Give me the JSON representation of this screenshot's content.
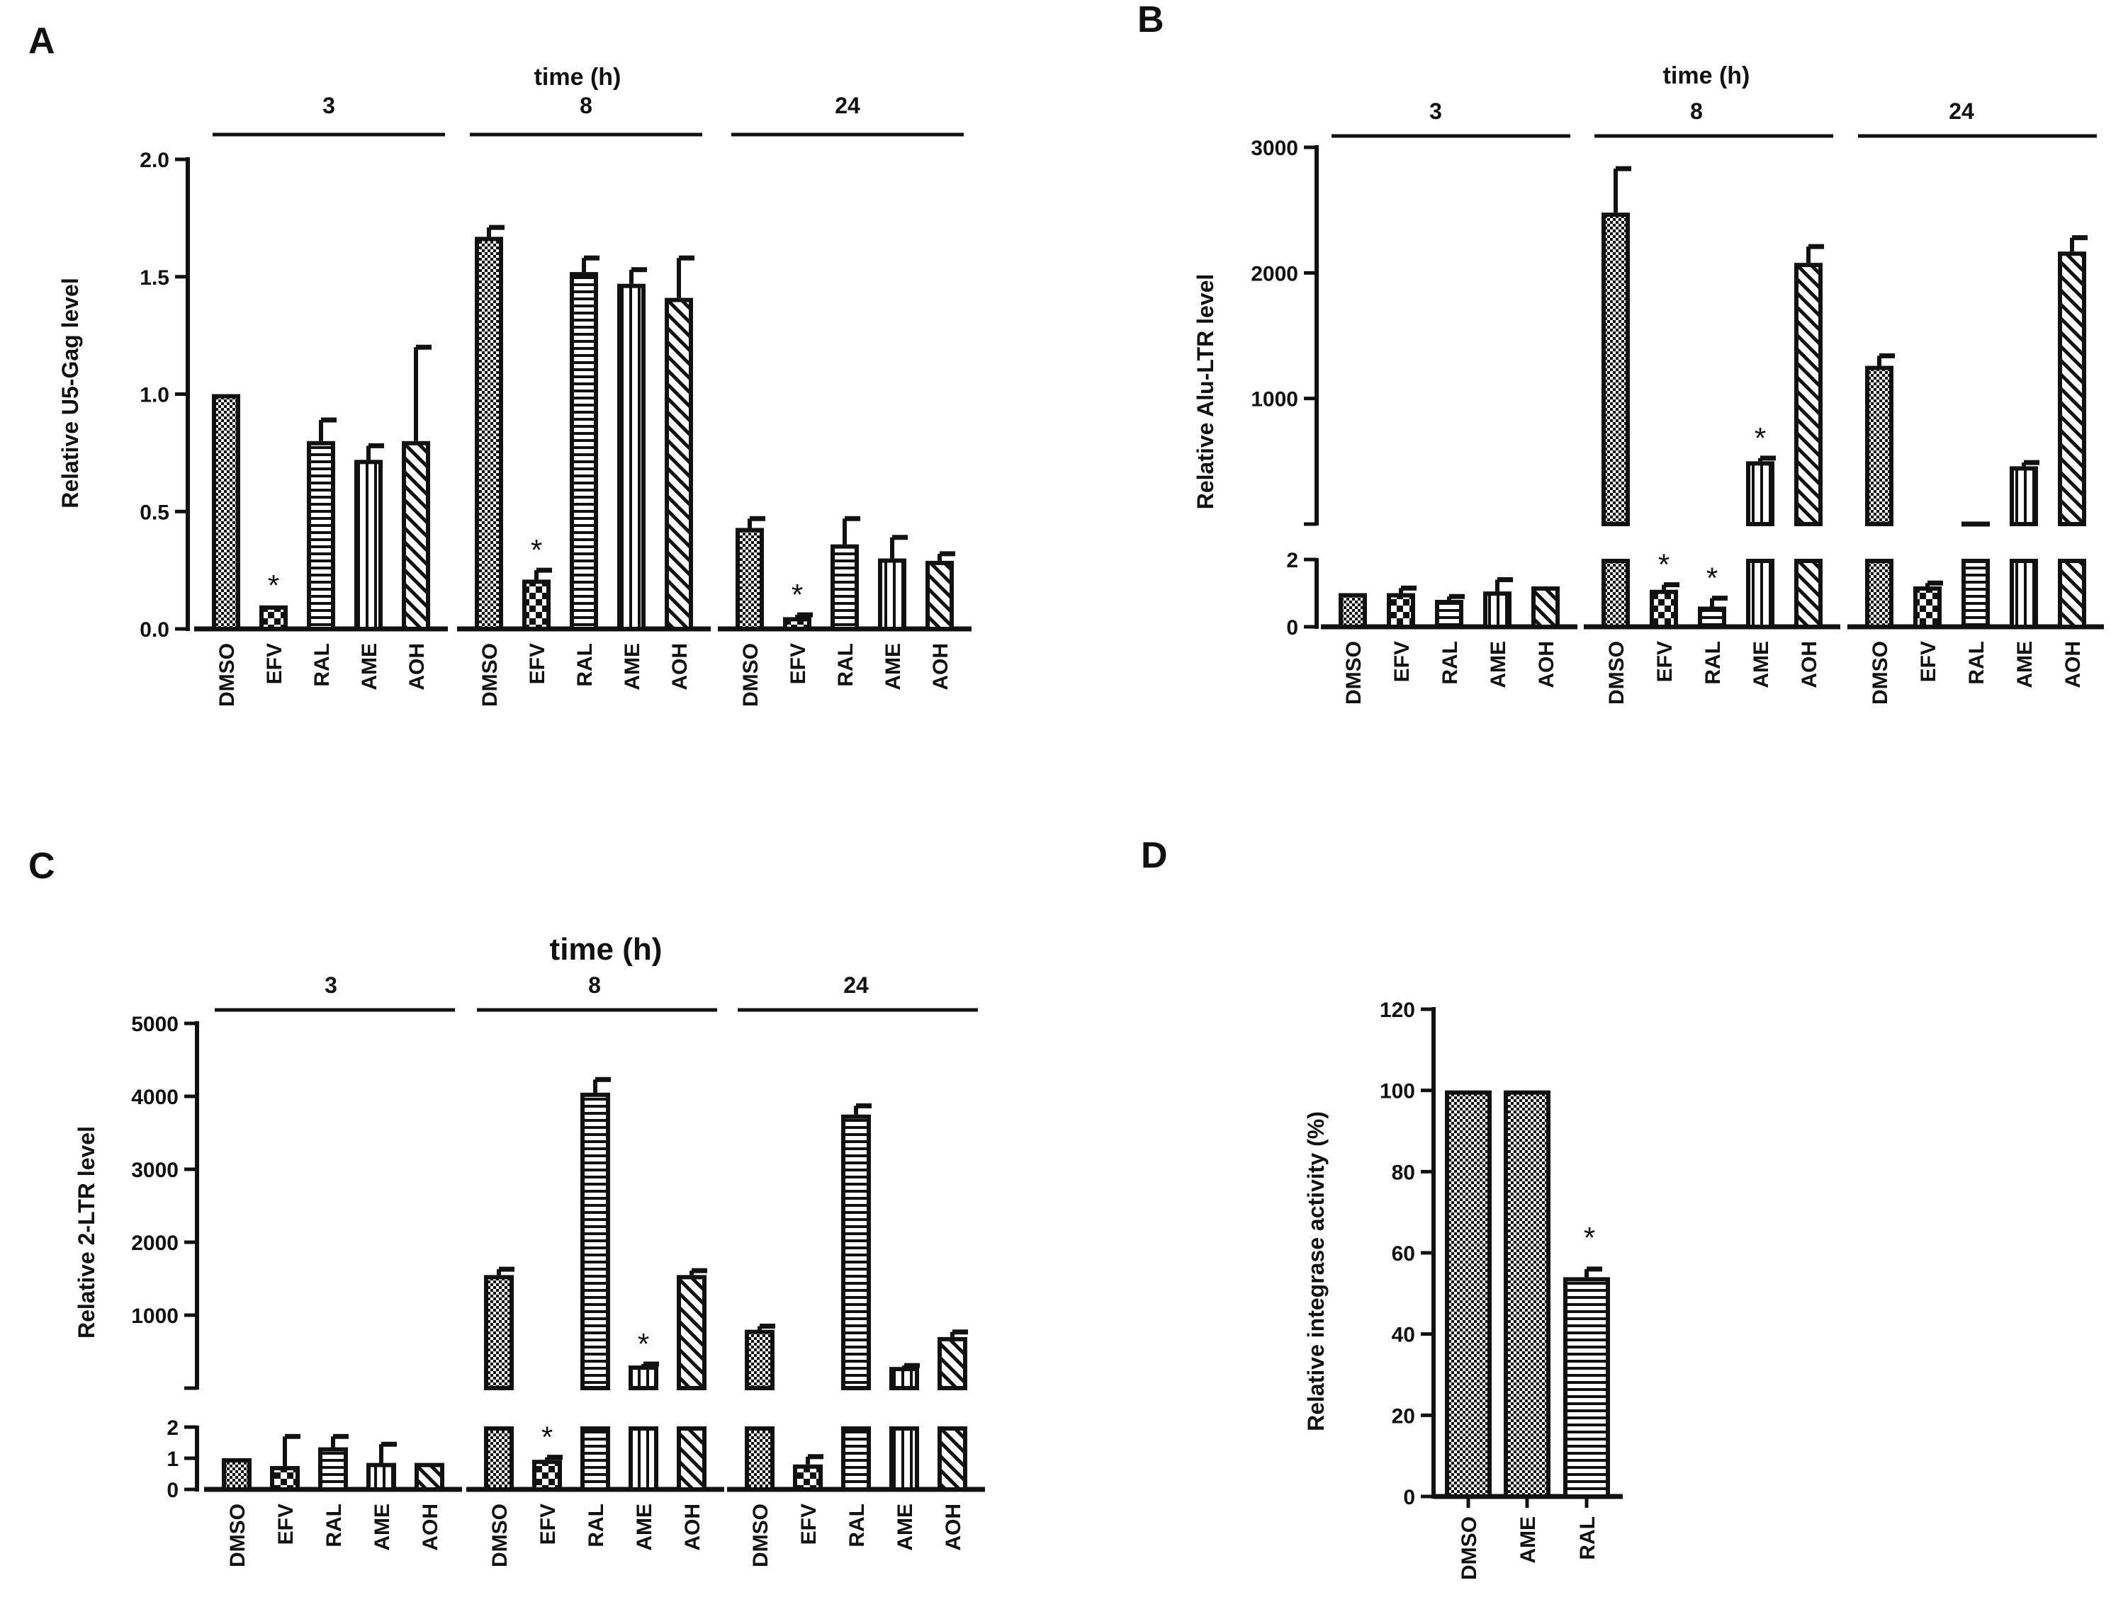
{
  "figure": {
    "colors": {
      "ink": "#111111",
      "paper": "#ffffff"
    },
    "panels": {
      "A": "A",
      "B": "B",
      "C": "C",
      "D": "D"
    }
  },
  "chart_data": [
    {
      "id": "A",
      "type": "bar",
      "panel_label": "A",
      "title": "time (h)",
      "ylabel": "Relative U5-Gag level",
      "ylim": [
        0,
        2.0
      ],
      "yticks": [
        0.0,
        0.5,
        1.0,
        1.5,
        2.0
      ],
      "ytick_labels": [
        "0.0",
        "0.5",
        "1.0",
        "1.5",
        "2.0"
      ],
      "categories": [
        "DMSO",
        "EFV",
        "RAL",
        "AME",
        "AOH"
      ],
      "patterns": [
        "checker",
        "bigchecker",
        "hlines",
        "vlines",
        "diag"
      ],
      "groups": [
        {
          "label": "3",
          "values": [
            1.0,
            0.1,
            0.8,
            0.72,
            0.8
          ],
          "errors": [
            0,
            0,
            0.09,
            0.06,
            0.4
          ],
          "significant": [
            false,
            true,
            false,
            false,
            false
          ]
        },
        {
          "label": "8",
          "values": [
            1.67,
            0.21,
            1.52,
            1.47,
            1.41
          ],
          "errors": [
            0.04,
            0.04,
            0.06,
            0.06,
            0.17
          ],
          "significant": [
            false,
            true,
            false,
            false,
            false
          ]
        },
        {
          "label": "24",
          "values": [
            0.43,
            0.05,
            0.36,
            0.3,
            0.29
          ],
          "errors": [
            0.04,
            0.01,
            0.11,
            0.09,
            0.03
          ],
          "significant": [
            false,
            true,
            false,
            false,
            false
          ]
        }
      ],
      "annotation": "*"
    },
    {
      "id": "B",
      "type": "bar",
      "panel_label": "B",
      "title": "time (h)",
      "ylabel": "Relative Alu-LTR level",
      "broken_axis": {
        "lower_range": [
          0,
          2
        ],
        "upper_range": [
          0,
          3000
        ]
      },
      "yticks_lower": [
        0,
        2
      ],
      "yticks_upper": [
        1000,
        2000,
        3000
      ],
      "ytick_labels_lower": [
        "0",
        "2"
      ],
      "ytick_labels_upper": [
        "1000",
        "2000",
        "3000"
      ],
      "categories": [
        "DMSO",
        "EFV",
        "RAL",
        "AME",
        "AOH"
      ],
      "patterns": [
        "checker",
        "bigchecker",
        "hlines",
        "vlines",
        "diag"
      ],
      "groups": [
        {
          "label": "3",
          "values": [
            1.0,
            1.0,
            0.8,
            1.05,
            1.2
          ],
          "errors": [
            0,
            0.15,
            0.1,
            0.35,
            0
          ],
          "significant": [
            false,
            false,
            false,
            false,
            false
          ]
        },
        {
          "label": "8",
          "values": [
            2480,
            1.1,
            0.6,
            500,
            2080
          ],
          "errors": [
            350,
            0.15,
            0.25,
            25,
            130
          ],
          "significant": [
            false,
            true,
            true,
            true,
            false
          ]
        },
        {
          "label": "24",
          "values": [
            1260,
            1.2,
            20,
            460,
            2170
          ],
          "errors": [
            80,
            0.1,
            0,
            30,
            110
          ],
          "significant": [
            false,
            false,
            false,
            false,
            false
          ]
        }
      ],
      "annotation": "*"
    },
    {
      "id": "C",
      "type": "bar",
      "panel_label": "C",
      "title": "time (h)",
      "ylabel": "Relative 2-LTR level",
      "broken_axis": {
        "lower_range": [
          0,
          2
        ],
        "upper_range": [
          0,
          5000
        ]
      },
      "yticks_lower": [
        0,
        1,
        2
      ],
      "yticks_upper": [
        1000,
        2000,
        3000,
        4000,
        5000
      ],
      "ytick_labels_lower": [
        "0",
        "1",
        "2"
      ],
      "ytick_labels_upper": [
        "1000",
        "2000",
        "3000",
        "4000",
        "5000"
      ],
      "categories": [
        "DMSO",
        "EFV",
        "RAL",
        "AME",
        "AOH"
      ],
      "patterns": [
        "checker",
        "bigchecker",
        "hlines",
        "vlines",
        "diag"
      ],
      "groups": [
        {
          "label": "3",
          "values": [
            1.0,
            0.75,
            1.35,
            0.85,
            0.85
          ],
          "errors": [
            0,
            0.95,
            0.35,
            0.6,
            0
          ],
          "significant": [
            false,
            false,
            false,
            false,
            false
          ]
        },
        {
          "label": "8",
          "values": [
            1550,
            0.95,
            4050,
            310,
            1550
          ],
          "errors": [
            80,
            0.08,
            180,
            20,
            60
          ],
          "significant": [
            false,
            true,
            false,
            true,
            false
          ]
        },
        {
          "label": "24",
          "values": [
            800,
            0.8,
            3750,
            290,
            700
          ],
          "errors": [
            50,
            0.25,
            120,
            20,
            70
          ],
          "significant": [
            false,
            false,
            false,
            false,
            false
          ]
        }
      ],
      "annotation": "*"
    },
    {
      "id": "D",
      "type": "bar",
      "panel_label": "D",
      "title": "",
      "ylabel": "Relative integrase activity (%)",
      "ylim": [
        0,
        120
      ],
      "yticks": [
        0,
        20,
        40,
        60,
        80,
        100,
        120
      ],
      "ytick_labels": [
        "0",
        "20",
        "40",
        "60",
        "80",
        "100",
        "120"
      ],
      "categories": [
        "DMSO",
        "AME",
        "RAL"
      ],
      "patterns": [
        "checker",
        "checker",
        "hlines"
      ],
      "values": [
        100,
        100,
        54
      ],
      "errors": [
        0,
        0,
        2
      ],
      "significant": [
        false,
        false,
        true
      ],
      "annotation": "*"
    }
  ]
}
